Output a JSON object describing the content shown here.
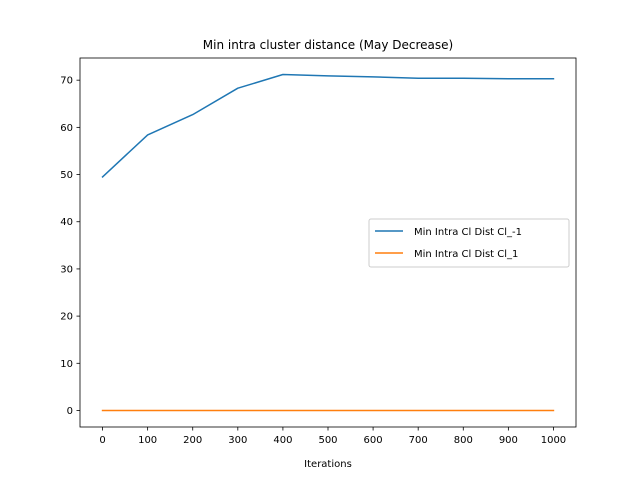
{
  "chart_data": {
    "type": "line",
    "title": "Min intra cluster distance (May Decrease)",
    "xlabel": "Iterations",
    "ylabel": "",
    "xlim": [
      -50,
      1050
    ],
    "ylim": [
      -3.5,
      74.7
    ],
    "xticks": [
      0,
      100,
      200,
      300,
      400,
      500,
      600,
      700,
      800,
      900,
      1000
    ],
    "yticks": [
      0,
      10,
      20,
      30,
      40,
      50,
      60,
      70
    ],
    "grid": false,
    "legend_position": "center-right",
    "x": [
      0,
      100,
      200,
      300,
      400,
      500,
      600,
      700,
      800,
      900,
      1000
    ],
    "series": [
      {
        "name": "Min Intra Cl Dist Cl_-1",
        "color": "#1f77b4",
        "values": [
          49.5,
          58.4,
          62.7,
          68.3,
          71.2,
          70.9,
          70.7,
          70.4,
          70.4,
          70.3,
          70.3
        ]
      },
      {
        "name": "Min Intra Cl Dist Cl_1",
        "color": "#ff7f0e",
        "values": [
          0,
          0,
          0,
          0,
          0,
          0,
          0,
          0,
          0,
          0,
          0
        ]
      }
    ]
  }
}
